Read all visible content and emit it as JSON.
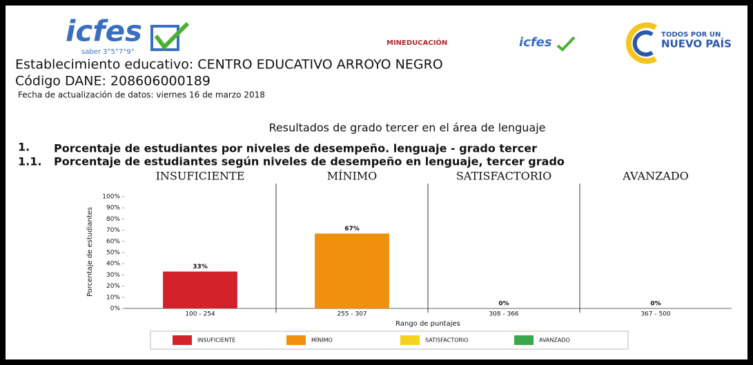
{
  "header": {
    "logo_main": "icfes",
    "logo_sub": "saber 3°5°7°9°",
    "logo_ministry": "MINEDUCACIÓN",
    "logo_small": "icfes",
    "logo_gov_top": "TODOS POR UN",
    "logo_gov_bottom": "NUEVO PAÍS",
    "school": "Establecimiento educativo: CENTRO EDUCATIVO ARROYO NEGRO",
    "dane": "Código DANE: 208606000189",
    "updated": "Fecha de actualización de datos: viernes 16 de marzo 2018",
    "section_title": "Resultados de grado tercer en el área de lenguaje",
    "item_1_number": "1.",
    "item_1": "Porcentaje de estudiantes por niveles de desempeño. lenguaje - grado tercer",
    "item_11_number": "1.1.",
    "item_11": "Porcentaje de estudiantes según niveles de desempeño en lenguaje, tercer grado"
  },
  "chart_data": {
    "type": "bar",
    "panels": [
      "INSUFICIENTE",
      "MÍNIMO",
      "SATISFACTORIO",
      "AVANZADO"
    ],
    "categories": [
      "100 - 254",
      "255 - 307",
      "308 - 366",
      "367 - 500"
    ],
    "values": [
      33,
      67,
      0,
      0
    ],
    "value_labels": [
      "33%",
      "67%",
      "0%",
      "0%"
    ],
    "colors": [
      "#d3222a",
      "#f0900c",
      "#f4d21e",
      "#39a84a"
    ],
    "legend": [
      "INSUFICIENTE",
      "MÍNIMO",
      "SATISFACTORIO",
      "AVANZADO"
    ],
    "xlabel": "Rango de puntajes",
    "ylabel": "Porcentaje de estudiantes",
    "ylim": [
      0,
      100
    ],
    "yticks": [
      {
        "value": 0,
        "label": "0%"
      },
      {
        "value": 10,
        "label": "10%"
      },
      {
        "value": 20,
        "label": "20%"
      },
      {
        "value": 30,
        "label": "30%"
      },
      {
        "value": 40,
        "label": "40%"
      },
      {
        "value": 50,
        "label": "50%"
      },
      {
        "value": 60,
        "label": "60%"
      },
      {
        "value": 70,
        "label": "70%"
      },
      {
        "value": 80,
        "label": "80%"
      },
      {
        "value": 90,
        "label": "90%"
      },
      {
        "value": 100,
        "label": "100%"
      }
    ]
  }
}
